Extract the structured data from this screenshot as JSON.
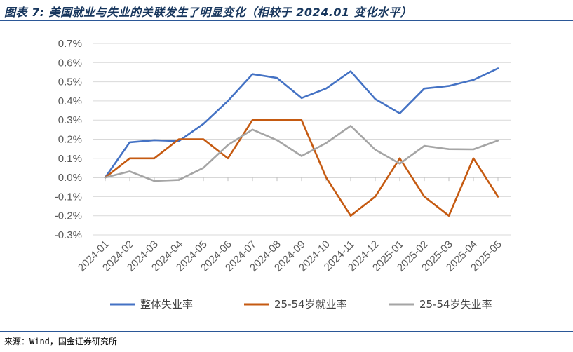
{
  "figure": {
    "title": "图表 7: 美国就业与失业的关联发生了明显变化（相较于 2024.01 变化水平）",
    "source": "来源：Wind，国金证券研究所"
  },
  "colors": {
    "rule": "#2b5797",
    "grid": "#d9d9d9",
    "axis": "#bfbfbf",
    "tick_text": "#595959"
  },
  "chart_data": {
    "type": "line",
    "x": [
      "2024-01",
      "2024-02",
      "2024-03",
      "2024-04",
      "2024-05",
      "2024-06",
      "2024-07",
      "2024-08",
      "2024-09",
      "2024-10",
      "2024-11",
      "2024-12",
      "2025-01",
      "2025-02",
      "2025-03",
      "2025-04",
      "2025-05"
    ],
    "ylim": [
      -0.3,
      0.7
    ],
    "yticks": [
      -0.3,
      -0.2,
      -0.1,
      0.0,
      0.1,
      0.2,
      0.3,
      0.4,
      0.5,
      0.6,
      0.7
    ],
    "y_unit": "%",
    "xlabel": "",
    "ylabel": "",
    "grid": "horizontal",
    "legend_position": "bottom",
    "series": [
      {
        "name": "整体失业率",
        "color": "#4472c4",
        "values": [
          0.0,
          0.184,
          0.195,
          0.19,
          0.28,
          0.4,
          0.54,
          0.52,
          0.415,
          0.465,
          0.555,
          0.41,
          0.335,
          0.465,
          0.478,
          0.51,
          0.57
        ]
      },
      {
        "name": "25-54岁就业率",
        "color": "#c55a11",
        "values": [
          0.0,
          0.1,
          0.1,
          0.2,
          0.2,
          0.1,
          0.3,
          0.3,
          0.3,
          0.0,
          -0.2,
          -0.1,
          0.1,
          -0.1,
          -0.2,
          0.1,
          -0.1
        ]
      },
      {
        "name": "25-54岁失业率",
        "color": "#a5a5a5",
        "values": [
          0.0,
          0.032,
          -0.018,
          -0.013,
          0.05,
          0.17,
          0.25,
          0.195,
          0.112,
          0.18,
          0.27,
          0.145,
          0.072,
          0.165,
          0.148,
          0.147,
          0.193
        ]
      }
    ]
  }
}
